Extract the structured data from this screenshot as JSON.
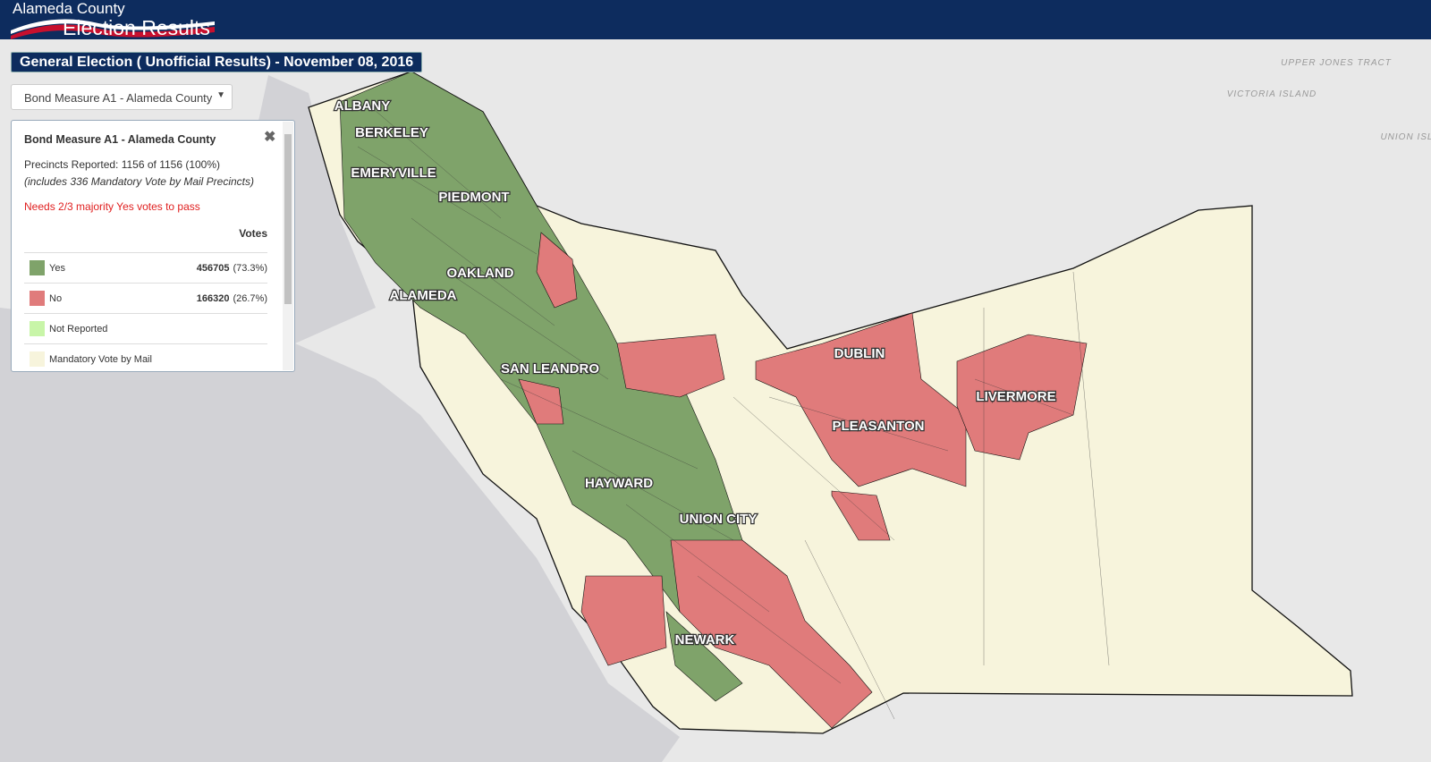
{
  "header": {
    "county": "Alameda County",
    "title": "Election Results"
  },
  "election": "General Election ( Unofficial Results) - November 08, 2016",
  "selector": {
    "selected": "Bond Measure A1 - Alameda County"
  },
  "panel": {
    "title": "Bond Measure A1 - Alameda County",
    "precincts": "Precincts Reported: 1156 of 1156 (100%)",
    "note": "(includes 336 Mandatory Vote by Mail Precincts)",
    "requirement": "Needs 2/3 majority Yes votes to pass",
    "votes_header": "Votes",
    "rows": [
      {
        "label": "Yes",
        "color": "#7fa36a",
        "votes": 456705,
        "percent": "(73.3%)"
      },
      {
        "label": "No",
        "color": "#e07b7b",
        "votes": 166320,
        "percent": "(26.7%)"
      },
      {
        "label": "Not Reported",
        "color": "#c8f5a8"
      },
      {
        "label": "Mandatory Vote by Mail",
        "color": "#f7f4dc"
      }
    ]
  },
  "map": {
    "cities": [
      "ALBANY",
      "BERKELEY",
      "EMERYVILLE",
      "PIEDMONT",
      "OAKLAND",
      "ALAMEDA",
      "SAN LEANDRO",
      "HAYWARD",
      "UNION CITY",
      "NEWARK",
      "DUBLIN",
      "PLEASANTON",
      "LIVERMORE"
    ],
    "basemap_labels": [
      "UPPER JONES TRACT",
      "VICTORIA ISLAND",
      "UNION ISLAND"
    ]
  }
}
